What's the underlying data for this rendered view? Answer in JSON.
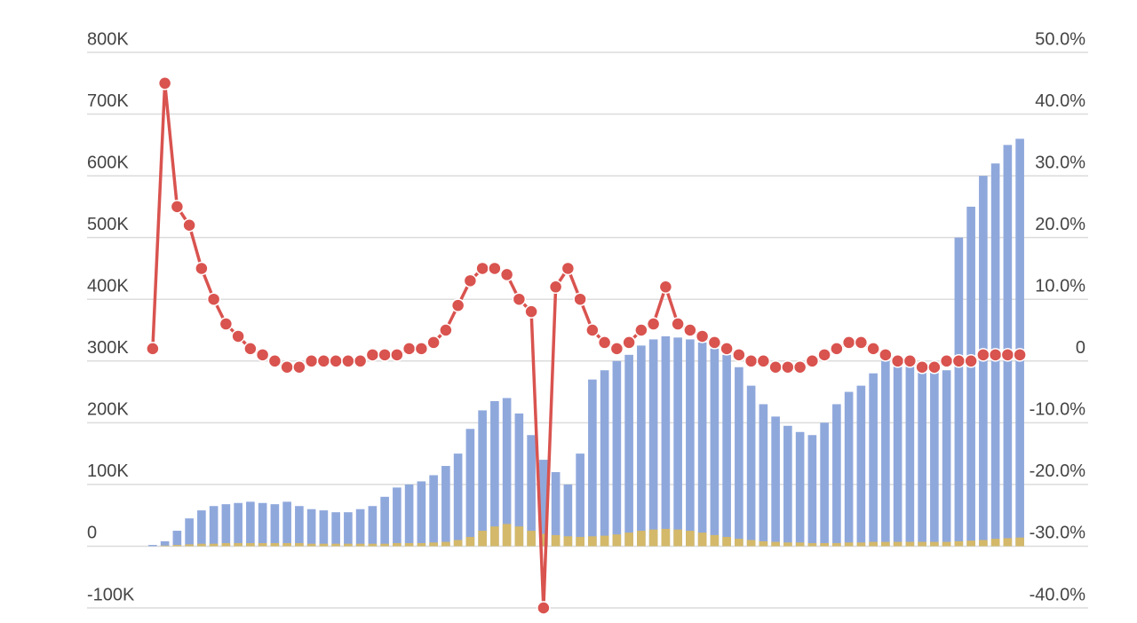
{
  "chart_data": {
    "type": "bar",
    "categories": [
      null,
      null,
      null,
      null,
      null,
      null,
      null,
      null,
      null,
      null,
      null,
      null,
      null,
      null,
      null,
      null,
      null,
      null,
      null,
      null,
      null,
      null,
      null,
      null,
      null,
      null,
      null,
      null,
      null,
      null,
      null,
      null,
      null,
      null,
      null,
      null,
      null,
      null,
      null,
      null,
      null,
      null,
      null,
      null,
      null,
      null,
      null,
      null,
      null,
      null,
      null,
      null,
      null,
      null,
      null,
      null,
      null,
      null,
      null,
      null,
      null,
      null,
      null,
      null,
      null,
      null,
      null,
      null,
      null,
      null,
      null,
      null
    ],
    "series": [
      {
        "type": "bar",
        "color": "#8fa8dc",
        "values": [
          2000,
          8000,
          25000,
          45000,
          58000,
          65000,
          68000,
          70000,
          72000,
          70000,
          68000,
          72000,
          65000,
          60000,
          58000,
          55000,
          55000,
          60000,
          65000,
          80000,
          95000,
          100000,
          105000,
          115000,
          130000,
          150000,
          190000,
          220000,
          235000,
          240000,
          215000,
          180000,
          140000,
          120000,
          100000,
          150000,
          270000,
          285000,
          300000,
          310000,
          325000,
          335000,
          340000,
          338000,
          335000,
          330000,
          320000,
          310000,
          290000,
          260000,
          230000,
          210000,
          195000,
          185000,
          180000,
          200000,
          230000,
          250000,
          260000,
          280000,
          300000,
          300000,
          295000,
          295000,
          290000,
          285000,
          500000,
          550000,
          600000,
          620000,
          650000,
          660000
        ]
      },
      {
        "type": "bar",
        "color": "#d4b96a",
        "values": [
          0,
          1000,
          2000,
          3000,
          4000,
          4000,
          5000,
          5000,
          5000,
          5000,
          5000,
          5000,
          5000,
          4000,
          4000,
          4000,
          4000,
          4000,
          4000,
          4000,
          5000,
          5000,
          5000,
          6000,
          7000,
          10000,
          15000,
          25000,
          32000,
          36000,
          32000,
          25000,
          20000,
          18000,
          16000,
          15000,
          16000,
          17000,
          19000,
          22000,
          25000,
          27000,
          28000,
          27000,
          25000,
          22000,
          18000,
          15000,
          12000,
          10000,
          8000,
          7000,
          6000,
          6000,
          5000,
          5000,
          5000,
          6000,
          6000,
          7000,
          7000,
          7000,
          7000,
          7000,
          7000,
          7000,
          8000,
          9000,
          10000,
          12000,
          13000,
          14000
        ]
      },
      {
        "type": "line",
        "axis": "y2",
        "color": "#d9534f",
        "values": [
          2,
          45,
          25,
          22,
          15,
          10,
          6,
          4,
          2,
          1,
          0,
          -1,
          -1,
          0,
          0,
          0,
          0,
          0,
          1,
          1,
          1,
          2,
          2,
          3,
          5,
          9,
          13,
          15,
          15,
          14,
          10,
          8,
          -40,
          12,
          15,
          10,
          5,
          3,
          2,
          3,
          5,
          6,
          12,
          6,
          5,
          4,
          3,
          2,
          1,
          0,
          0,
          -1,
          -1,
          -1,
          0,
          1,
          2,
          3,
          3,
          2,
          1,
          0,
          0,
          -1,
          -1,
          0,
          0,
          0,
          1,
          1,
          1,
          1
        ]
      }
    ],
    "ylim": [
      -100000,
      800000
    ],
    "yticks": [
      {
        "value": -100000,
        "label": "-100K"
      },
      0,
      {
        "value": 100000,
        "label": "100K"
      },
      {
        "value": 200000,
        "label": "200K"
      },
      {
        "value": 300000,
        "label": "300K"
      },
      {
        "value": 400000,
        "label": "400K"
      },
      {
        "value": 500000,
        "label": "500K"
      },
      {
        "value": 600000,
        "label": "600K"
      },
      {
        "value": 700000,
        "label": "700K"
      },
      {
        "value": 800000,
        "label": "800K"
      }
    ],
    "y2lim": [
      -40,
      50
    ],
    "y2ticks": [
      {
        "value": -40,
        "label": "-40.0%"
      },
      {
        "value": -30,
        "label": "-30.0%"
      },
      {
        "value": -20,
        "label": "-20.0%"
      },
      {
        "value": -10,
        "label": "-10.0%"
      },
      0,
      {
        "value": 10,
        "label": "10.0%"
      },
      {
        "value": 20,
        "label": "20.0%"
      },
      {
        "value": 30,
        "label": "30.0%"
      },
      {
        "value": 40,
        "label": "40.0%"
      },
      {
        "value": 50,
        "label": "50.0%"
      }
    ],
    "grid": true
  }
}
